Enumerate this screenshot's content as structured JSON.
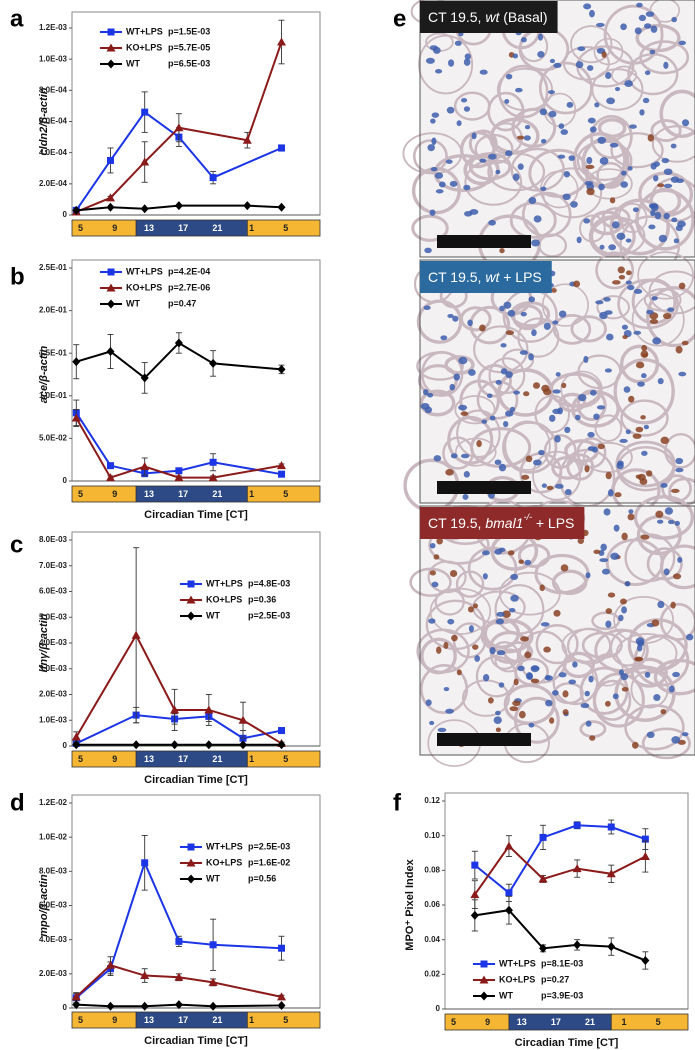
{
  "chart_data": [
    {
      "panel_label": "a",
      "type": "line",
      "ylabel": "cldn2/β-actin",
      "legend": "top-left",
      "x": [
        4.5,
        8.5,
        12.5,
        16.5,
        20.5,
        28.5
      ],
      "xlim": [
        4,
        33
      ],
      "xticks": [
        5,
        9,
        13,
        17,
        21,
        {
          "value": 25,
          "label": "1"
        },
        {
          "value": 29,
          "label": "5"
        }
      ],
      "phases": [
        {
          "from": 4,
          "to": 11.5,
          "color": "#f5b634"
        },
        {
          "from": 11.5,
          "to": 24.5,
          "color": "#2d4a86"
        },
        {
          "from": 24.5,
          "to": 33,
          "color": "#f5b634"
        }
      ],
      "ylim": [
        0,
        0.0012
      ],
      "yticks": [
        0,
        {
          "value": 0.0002,
          "label": "2.0E-04"
        },
        {
          "value": 0.0004,
          "label": "4.0E-04"
        },
        {
          "value": 0.0006,
          "label": "6.0E-04"
        },
        {
          "value": 0.0008,
          "label": "8.0E-04"
        },
        {
          "value": 0.001,
          "label": "1.0E-03"
        },
        {
          "value": 0.0012,
          "label": "1.2E-03"
        }
      ],
      "series": [
        {
          "name": "WT+LPS",
          "pvalue": "p=1.5E-03",
          "color": "#1c35e6",
          "marker": "square",
          "values": [
            3e-05,
            0.00035,
            0.00066,
            0.0005,
            0.00024,
            0.00043
          ],
          "errors": [
            1e-05,
            8e-05,
            0.00013,
            6e-05,
            4e-05,
            2e-05
          ]
        },
        {
          "name": "KO+LPS",
          "pvalue": "p=5.7E-05",
          "color": "#8b1a1a",
          "marker": "triangle",
          "x": [
            4.5,
            8.5,
            12.5,
            16.5,
            24.5,
            28.5
          ],
          "values": [
            2e-05,
            0.00011,
            0.00034,
            0.00056,
            0.00048,
            0.00111
          ],
          "errors": [
            1e-05,
            1e-05,
            0.00013,
            9e-05,
            5e-05,
            0.00014
          ]
        },
        {
          "name": "WT",
          "pvalue": "p=6.5E-03",
          "color": "#000000",
          "marker": "diamond",
          "x": [
            4.5,
            8.5,
            12.5,
            16.5,
            24.5,
            28.5
          ],
          "values": [
            3e-05,
            5e-05,
            4e-05,
            6e-05,
            6e-05,
            5e-05
          ]
        }
      ]
    },
    {
      "panel_label": "b",
      "type": "line",
      "ylabel": "ace/β-actin",
      "xlabel": "Circadian Time [CT]",
      "legend": "top-left",
      "x": [
        4.5,
        8.5,
        12.5,
        16.5,
        20.5,
        28.5
      ],
      "xlim": [
        4,
        33
      ],
      "xticks": [
        5,
        9,
        13,
        17,
        21,
        {
          "value": 25,
          "label": "1"
        },
        {
          "value": 29,
          "label": "5"
        }
      ],
      "phases": [
        {
          "from": 4,
          "to": 11.5,
          "color": "#f5b634"
        },
        {
          "from": 11.5,
          "to": 24.5,
          "color": "#2d4a86"
        },
        {
          "from": 24.5,
          "to": 33,
          "color": "#f5b634"
        }
      ],
      "ylim": [
        0,
        0.25
      ],
      "yticks": [
        0,
        {
          "value": 0.05,
          "label": "5.0E-02"
        },
        {
          "value": 0.1,
          "label": "1.0E-01"
        },
        {
          "value": 0.15,
          "label": "1.5E-01"
        },
        {
          "value": 0.2,
          "label": "2.0E-01"
        },
        {
          "value": 0.25,
          "label": "2.5E-01"
        }
      ],
      "series": [
        {
          "name": "WT+LPS",
          "pvalue": "p=4.2E-04",
          "color": "#1c35e6",
          "marker": "square",
          "values": [
            0.08,
            0.018,
            0.009,
            0.012,
            0.022,
            0.008
          ],
          "errors": [
            0.015,
            0.002,
            0.004,
            0.003,
            0.01,
            0.002
          ]
        },
        {
          "name": "KO+LPS",
          "pvalue": "p=2.7E-06",
          "color": "#8b1a1a",
          "marker": "triangle",
          "values": [
            0.074,
            0.004,
            0.017,
            0.004,
            0.004,
            0.018
          ],
          "errors": [
            0.01,
            0.002,
            0.01,
            0.002,
            0.002,
            0.002
          ]
        },
        {
          "name": "WT",
          "pvalue": "p=0.47",
          "color": "#000000",
          "marker": "diamond",
          "values": [
            0.14,
            0.152,
            0.121,
            0.162,
            0.138,
            0.131
          ],
          "errors": [
            0.02,
            0.02,
            0.018,
            0.012,
            0.015,
            0.005
          ]
        }
      ]
    },
    {
      "panel_label": "c",
      "type": "line",
      "ylabel": "ifnγ/β-actin",
      "xlabel": "Circadian Time [CT]",
      "legend": "top-right",
      "x": [
        4.5,
        11.5,
        16,
        20,
        24,
        28.5
      ],
      "xlim": [
        4,
        33
      ],
      "xticks": [
        5,
        9,
        13,
        17,
        21,
        {
          "value": 25,
          "label": "1"
        },
        {
          "value": 29,
          "label": "5"
        }
      ],
      "phases": [
        {
          "from": 4,
          "to": 11.5,
          "color": "#f5b634"
        },
        {
          "from": 11.5,
          "to": 24.5,
          "color": "#2d4a86"
        },
        {
          "from": 24.5,
          "to": 33,
          "color": "#f5b634"
        }
      ],
      "ylim": [
        0,
        0.008
      ],
      "yticks": [
        0,
        {
          "value": 0.001,
          "label": "1.0E-03"
        },
        {
          "value": 0.002,
          "label": "2.0E-03"
        },
        {
          "value": 0.003,
          "label": "3.0E-03"
        },
        {
          "value": 0.004,
          "label": "4.0E-03"
        },
        {
          "value": 0.005,
          "label": "5.0E-03"
        },
        {
          "value": 0.006,
          "label": "6.0E-03"
        },
        {
          "value": 0.007,
          "label": "7.0E-03"
        },
        {
          "value": 0.008,
          "label": "8.0E-03"
        }
      ],
      "series": [
        {
          "name": "WT+LPS",
          "pvalue": "p=4.8E-03",
          "color": "#1c35e6",
          "marker": "square",
          "values": [
            0.0001,
            0.0012,
            0.00105,
            0.00115,
            0.0003,
            0.0006
          ],
          "errors": [
            5e-05,
            0.0003,
            0.0002,
            0.0002,
            0.0003,
            0.0001
          ]
        },
        {
          "name": "KO+LPS",
          "pvalue": "p=0.36",
          "color": "#8b1a1a",
          "marker": "triangle",
          "values": [
            0.00035,
            0.0043,
            0.0014,
            0.0014,
            0.001,
            0.0001
          ],
          "errors": [
            0.0002,
            0.0034,
            0.0008,
            0.0006,
            0.0007,
            5e-05
          ]
        },
        {
          "name": "WT",
          "pvalue": "p=2.5E-03",
          "color": "#000000",
          "marker": "diamond",
          "values": [
            5e-05,
            5e-05,
            5e-05,
            5e-05,
            5e-05,
            5e-05
          ]
        }
      ]
    },
    {
      "panel_label": "d",
      "type": "line",
      "ylabel": "mpo/β-actin",
      "xlabel": "Circadian Time [CT]",
      "legend": "top-right",
      "x": [
        4.5,
        8.5,
        12.5,
        16.5,
        20.5,
        28.5
      ],
      "xlim": [
        4,
        33
      ],
      "xticks": [
        5,
        9,
        13,
        17,
        21,
        {
          "value": 25,
          "label": "1"
        },
        {
          "value": 29,
          "label": "5"
        }
      ],
      "phases": [
        {
          "from": 4,
          "to": 11.5,
          "color": "#f5b634"
        },
        {
          "from": 11.5,
          "to": 24.5,
          "color": "#2d4a86"
        },
        {
          "from": 24.5,
          "to": 33,
          "color": "#f5b634"
        }
      ],
      "ylim": [
        0,
        0.012
      ],
      "yticks": [
        0,
        {
          "value": 0.002,
          "label": "2.0E-03"
        },
        {
          "value": 0.004,
          "label": "4.0E-03"
        },
        {
          "value": 0.006,
          "label": "6.0E-03"
        },
        {
          "value": 0.008,
          "label": "8.0E-03"
        },
        {
          "value": 0.01,
          "label": "1.0E-02"
        },
        {
          "value": 0.012,
          "label": "1.2E-02"
        }
      ],
      "series": [
        {
          "name": "WT+LPS",
          "pvalue": "p=2.5E-03",
          "color": "#1c35e6",
          "marker": "square",
          "values": [
            0.0006,
            0.0023,
            0.0085,
            0.0039,
            0.0037,
            0.0035
          ],
          "errors": [
            0.0003,
            0.0004,
            0.0016,
            0.0003,
            0.0015,
            0.0007
          ]
        },
        {
          "name": "KO+LPS",
          "pvalue": "p=1.6E-02",
          "color": "#8b1a1a",
          "marker": "triangle",
          "values": [
            0.00065,
            0.0025,
            0.0019,
            0.0018,
            0.0015,
            0.00065
          ],
          "errors": [
            0.0002,
            0.0005,
            0.0004,
            0.0002,
            0.0002,
            0.0001
          ]
        },
        {
          "name": "WT",
          "pvalue": "p=0.56",
          "color": "#000000",
          "marker": "diamond",
          "values": [
            0.0002,
            0.0001,
            0.0001,
            0.0002,
            0.0001,
            0.00015
          ]
        }
      ]
    },
    {
      "panel_label": "f",
      "type": "line",
      "ylabel": "MPO⁺ Pixel Index",
      "xlabel": "Circadian Time [CT]",
      "legend": "bottom-left",
      "x": [
        7.5,
        11.5,
        15.5,
        19.5,
        23.5,
        27.5
      ],
      "xlim": [
        4,
        32.5
      ],
      "xticks": [
        5,
        9,
        13,
        17,
        21,
        {
          "value": 25,
          "label": "1"
        },
        {
          "value": 29,
          "label": "5"
        }
      ],
      "phases": [
        {
          "from": 4,
          "to": 11.5,
          "color": "#f5b634"
        },
        {
          "from": 11.5,
          "to": 23.5,
          "color": "#2d4a86"
        },
        {
          "from": 23.5,
          "to": 32.5,
          "color": "#f5b634"
        }
      ],
      "ylim": [
        0,
        0.12
      ],
      "yticks": [
        0,
        0.02,
        0.04,
        0.06,
        0.08,
        {
          "value": 0.1,
          "label": "0.10"
        },
        0.12
      ],
      "series": [
        {
          "name": "WT+LPS",
          "pvalue": "p=8.1E-03",
          "color": "#1c35e6",
          "marker": "square",
          "values": [
            0.083,
            0.067,
            0.099,
            0.106,
            0.105,
            0.098
          ],
          "errors": [
            0.008,
            0.005,
            0.007,
            0.002,
            0.004,
            0.006
          ]
        },
        {
          "name": "KO+LPS",
          "pvalue": "p=0.27",
          "color": "#8b1a1a",
          "marker": "triangle",
          "values": [
            0.066,
            0.094,
            0.075,
            0.081,
            0.078,
            0.088
          ],
          "errors": [
            0.008,
            0.006,
            0.002,
            0.005,
            0.005,
            0.009
          ]
        },
        {
          "name": "WT",
          "pvalue": "p=3.9E-03",
          "color": "#000000",
          "marker": "diamond",
          "values": [
            0.054,
            0.057,
            0.035,
            0.037,
            0.036,
            0.028
          ],
          "errors": [
            0.009,
            0.008,
            0.002,
            0.003,
            0.005,
            0.005
          ]
        }
      ]
    }
  ],
  "image_panel": {
    "panel_label": "e",
    "images": [
      {
        "caption": [
          {
            "text": "CT 19.5, "
          },
          {
            "text": "wt",
            "italic": true
          },
          {
            "text": " (Basal)"
          }
        ],
        "caption_color": "#1b1b1b"
      },
      {
        "caption": [
          {
            "text": "CT 19.5, "
          },
          {
            "text": "wt",
            "italic": true
          },
          {
            "text": " + LPS"
          }
        ],
        "caption_color": "#2a6a9e"
      },
      {
        "caption": [
          {
            "text": "CT 19.5, "
          },
          {
            "text": "bmal1",
            "italic": true
          },
          {
            "text": "-/-",
            "italic": true,
            "sup": true
          },
          {
            "text": " + LPS"
          }
        ],
        "caption_color": "#8e2a2a"
      }
    ]
  }
}
